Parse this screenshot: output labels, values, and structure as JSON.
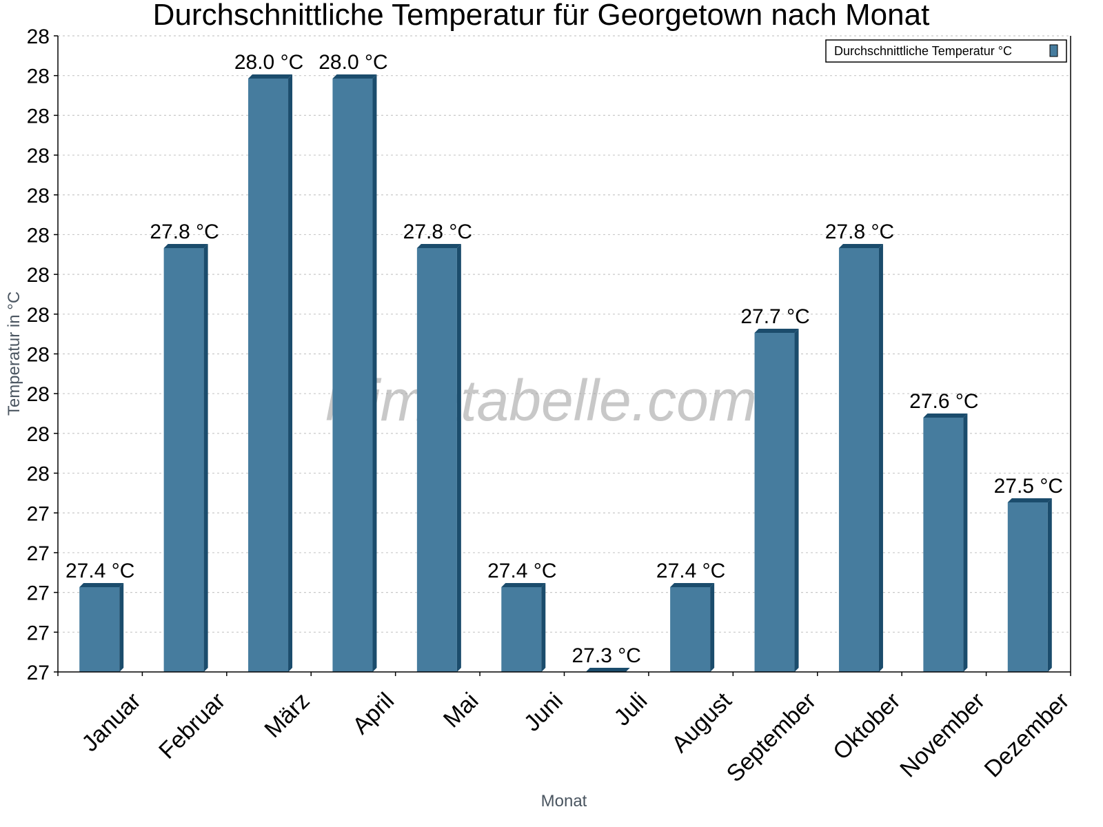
{
  "chart_data": {
    "type": "bar",
    "title": "Durchschnittliche Temperatur für Georgetown nach Monat",
    "xlabel": "Monat",
    "ylabel": "Temperatur in °C",
    "categories": [
      "Januar",
      "Februar",
      "März",
      "April",
      "Mai",
      "Juni",
      "Juli",
      "August",
      "September",
      "Oktober",
      "November",
      "Dezember"
    ],
    "series": [
      {
        "name": "Durchschnittliche Temperatur °C",
        "color": "#467c9e",
        "values": [
          27.4,
          27.8,
          28.0,
          28.0,
          27.8,
          27.4,
          27.3,
          27.4,
          27.7,
          27.8,
          27.6,
          27.5
        ]
      }
    ],
    "value_labels": [
      "27.4 °C",
      "27.8 °C",
      "28.0 °C",
      "28.0 °C",
      "27.8 °C",
      "27.4 °C",
      "27.3 °C",
      "27.4 °C",
      "27.7 °C",
      "27.8 °C",
      "27.6 °C",
      "27.5 °C"
    ],
    "y_tick_labels": [
      "28",
      "28",
      "28",
      "28",
      "28",
      "28",
      "28",
      "28",
      "28",
      "28",
      "28",
      "28",
      "27",
      "27",
      "27",
      "27"
    ],
    "ylim": [
      27.3,
      28.05
    ],
    "grid": true,
    "legend_position": "top-right",
    "watermark": "klimatabelle.com"
  },
  "colors": {
    "bar_face": "#467c9e",
    "bar_edge": "#1b4c6c",
    "grid": "#c8c8c8",
    "axis": "#000000"
  }
}
